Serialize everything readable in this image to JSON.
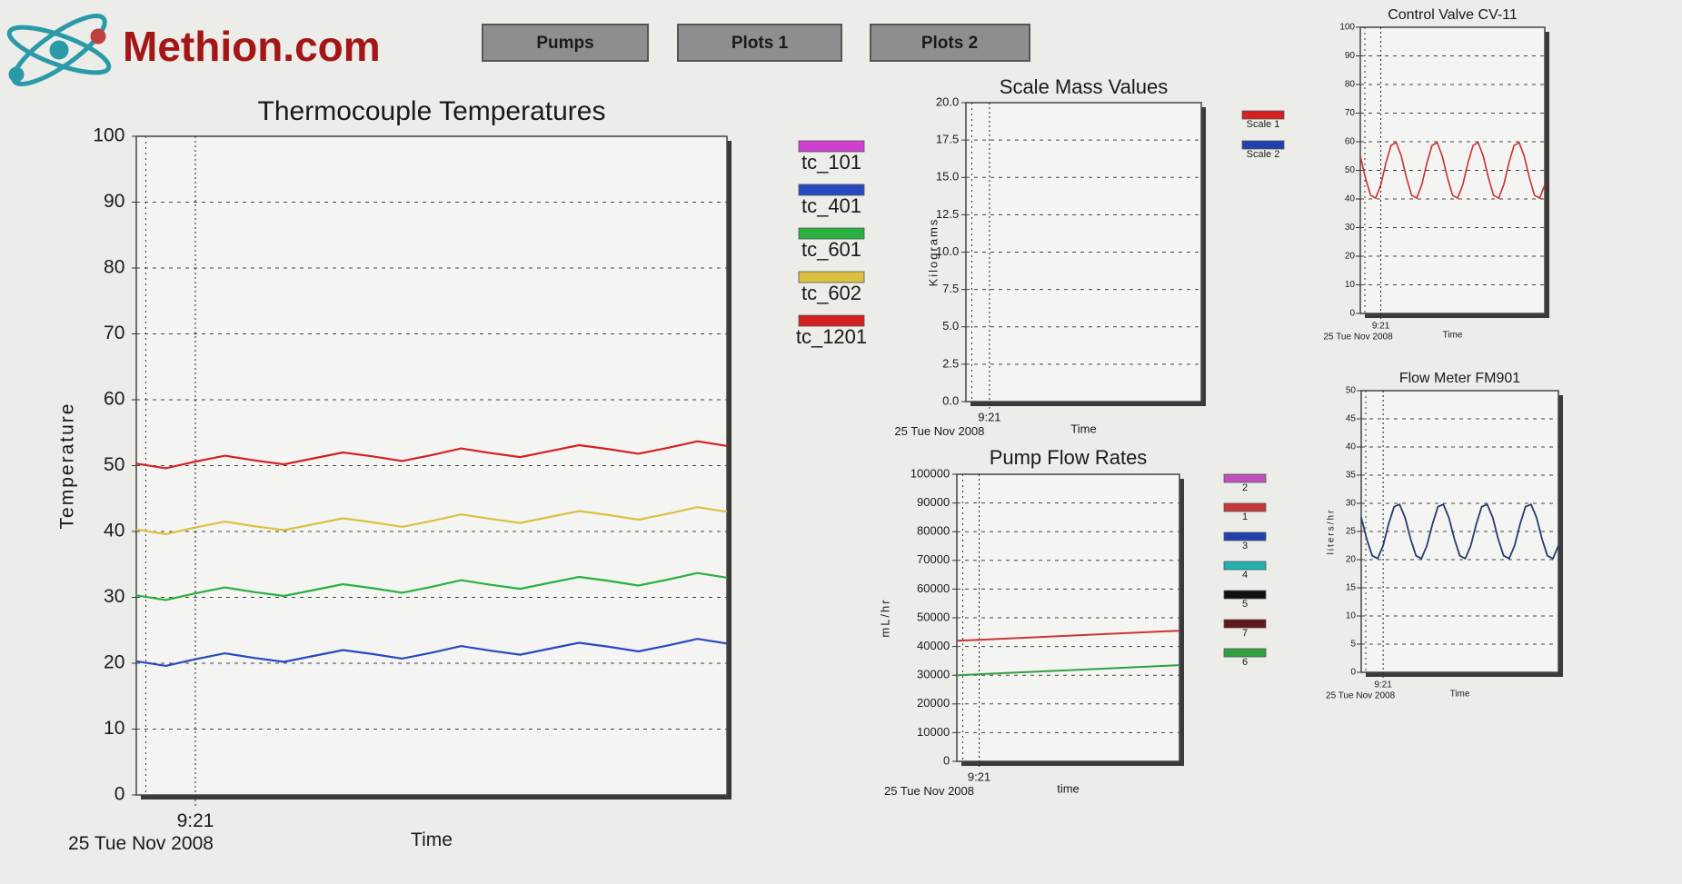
{
  "header": {
    "logo": "Methion.com",
    "buttons": [
      "Pumps",
      "Plots 1",
      "Plots 2"
    ]
  },
  "chart_data": [
    {
      "type": "line",
      "title": "Thermocouple Temperatures",
      "x_label": "Time",
      "y_label": "Temperature",
      "date_label": "25 Tue Nov 2008",
      "categories": [
        null,
        null,
        "9:21",
        null,
        null,
        null,
        null,
        null,
        null,
        null,
        null,
        null,
        null,
        null,
        null,
        null,
        null,
        null,
        null,
        null,
        null
      ],
      "ylim": [
        0,
        100
      ],
      "yticks": [
        0,
        10,
        20,
        30,
        40,
        50,
        60,
        70,
        80,
        90,
        100
      ],
      "grid": true,
      "legend": "right",
      "series": [
        {
          "name": "tc_101",
          "color": "#d040d0",
          "values": [
            null,
            null,
            null,
            null,
            null,
            null,
            null,
            null,
            null,
            null,
            null,
            null,
            null,
            null,
            null,
            null,
            null,
            null,
            null,
            null,
            null
          ]
        },
        {
          "name": "tc_401",
          "color": "#2848c0",
          "values": [
            20.3,
            19.6,
            20.6,
            21.5,
            20.8,
            20.2,
            21.1,
            22.0,
            21.4,
            20.7,
            21.6,
            22.6,
            21.9,
            21.3,
            22.2,
            23.1,
            22.5,
            21.8,
            22.7,
            23.7,
            23.0
          ]
        },
        {
          "name": "tc_601",
          "color": "#28b040",
          "values": [
            30.3,
            29.6,
            30.6,
            31.5,
            30.8,
            30.2,
            31.1,
            32.0,
            31.4,
            30.7,
            31.6,
            32.6,
            31.9,
            31.3,
            32.2,
            33.1,
            32.5,
            31.8,
            32.7,
            33.7,
            33.0
          ]
        },
        {
          "name": "tc_602",
          "color": "#dcc040",
          "values": [
            40.3,
            39.6,
            40.6,
            41.5,
            40.8,
            40.2,
            41.1,
            42.0,
            41.4,
            40.7,
            41.6,
            42.6,
            41.9,
            41.3,
            42.2,
            43.1,
            42.5,
            41.8,
            42.7,
            43.7,
            43.0
          ]
        },
        {
          "name": "tc_1201",
          "color": "#d42020",
          "values": [
            50.3,
            49.6,
            50.6,
            51.5,
            50.8,
            50.2,
            51.1,
            52.0,
            51.4,
            50.7,
            51.6,
            52.6,
            51.9,
            51.3,
            52.2,
            53.1,
            52.5,
            51.8,
            52.7,
            53.7,
            53.0
          ]
        }
      ]
    },
    {
      "type": "line",
      "title": "Scale Mass Values",
      "x_label": "Time",
      "y_label": "Kilograms",
      "date_label": "25 Tue Nov 2008",
      "categories": [
        null,
        "9:21",
        null,
        null,
        null,
        null,
        null,
        null,
        null,
        null,
        null
      ],
      "ylim": [
        0,
        20
      ],
      "yticks": [
        {
          "value": 0,
          "label": "0.0"
        },
        2.5,
        {
          "value": 5,
          "label": "5.0"
        },
        7.5,
        {
          "value": 10,
          "label": "10.0"
        },
        12.5,
        {
          "value": 15,
          "label": "15.0"
        },
        17.5,
        {
          "value": 20,
          "label": "20.0"
        }
      ],
      "grid": true,
      "legend": "right",
      "series": [
        {
          "name": "Scale 1",
          "color": "#d42020",
          "values": [
            null,
            null,
            null,
            null,
            null,
            null,
            null,
            null,
            null,
            null,
            null
          ]
        },
        {
          "name": "Scale 2",
          "color": "#2040b0",
          "values": [
            null,
            null,
            null,
            null,
            null,
            null,
            null,
            null,
            null,
            null,
            null
          ]
        }
      ]
    },
    {
      "type": "line",
      "title": "Pump Flow Rates",
      "x_label": "time",
      "y_label": "mL/hr",
      "date_label": "25 Tue Nov 2008",
      "categories": [
        null,
        "9:21",
        null,
        null,
        null,
        null,
        null,
        null,
        null,
        null,
        null
      ],
      "ylim": [
        0,
        100000
      ],
      "yticks": [
        0,
        10000,
        20000,
        30000,
        40000,
        50000,
        60000,
        70000,
        80000,
        90000,
        100000
      ],
      "grid": true,
      "legend": "right",
      "series": [
        {
          "name": "2",
          "color": "#c050c0",
          "values": [
            null,
            null,
            null,
            null,
            null,
            null,
            null,
            null,
            null,
            null,
            null
          ]
        },
        {
          "name": "1",
          "color": "#c83838",
          "values": [
            42000,
            42350,
            42700,
            43050,
            43400,
            43750,
            44100,
            44450,
            44800,
            45150,
            45500
          ]
        },
        {
          "name": "3",
          "color": "#2040b0",
          "values": [
            null,
            null,
            null,
            null,
            null,
            null,
            null,
            null,
            null,
            null,
            null
          ]
        },
        {
          "name": "4",
          "color": "#20b0b0",
          "values": [
            null,
            null,
            null,
            null,
            null,
            null,
            null,
            null,
            null,
            null,
            null
          ]
        },
        {
          "name": "5",
          "color": "#101010",
          "values": [
            null,
            null,
            null,
            null,
            null,
            null,
            null,
            null,
            null,
            null,
            null
          ]
        },
        {
          "name": "7",
          "color": "#601818",
          "values": [
            null,
            null,
            null,
            null,
            null,
            null,
            null,
            null,
            null,
            null,
            null
          ]
        },
        {
          "name": "6",
          "color": "#30a040",
          "values": [
            30000,
            30350,
            30700,
            31050,
            31400,
            31750,
            32100,
            32450,
            32800,
            33150,
            33500
          ]
        }
      ]
    },
    {
      "type": "line",
      "title": "Control Valve CV-11",
      "x_label": "Time",
      "date_label": "25 Tue Nov 2008",
      "categories": [
        null,
        null,
        null,
        null,
        "9:21",
        null,
        null,
        null,
        null,
        null,
        null,
        null,
        null,
        null,
        null,
        null,
        null,
        null,
        null,
        null,
        null,
        null,
        null,
        null,
        null,
        null,
        null,
        null,
        null,
        null,
        null,
        null,
        null,
        null,
        null,
        null,
        null
      ],
      "ylim": [
        0,
        100
      ],
      "yticks": [
        0,
        10,
        20,
        30,
        40,
        50,
        60,
        70,
        80,
        90,
        100
      ],
      "grid": true,
      "series": [
        {
          "color": "#c83030",
          "values": [
            55,
            47.4,
            41.3,
            40.3,
            45,
            52.6,
            58.7,
            59.7,
            55,
            47.4,
            41.3,
            40.3,
            45,
            52.6,
            58.7,
            59.7,
            55,
            47.4,
            41.3,
            40.3,
            45,
            52.6,
            58.7,
            59.7,
            55,
            47.4,
            41.3,
            40.3,
            45,
            52.6,
            58.7,
            59.7,
            55,
            47.4,
            41.3,
            40.3,
            45
          ]
        }
      ]
    },
    {
      "type": "line",
      "title": "Flow Meter FM901",
      "x_label": "Time",
      "y_label": "liters/hr",
      "date_label": "25 Tue Nov 2008",
      "categories": [
        null,
        null,
        null,
        null,
        "9:21",
        null,
        null,
        null,
        null,
        null,
        null,
        null,
        null,
        null,
        null,
        null,
        null,
        null,
        null,
        null,
        null,
        null,
        null,
        null,
        null,
        null,
        null,
        null,
        null,
        null,
        null,
        null,
        null,
        null,
        null,
        null,
        null
      ],
      "ylim": [
        0,
        50
      ],
      "yticks": [
        0,
        5,
        10,
        15,
        20,
        25,
        30,
        35,
        40,
        45,
        50
      ],
      "grid": true,
      "series": [
        {
          "color": "#2a3a70",
          "values": [
            27.5,
            23.7,
            20.7,
            20.2,
            22.5,
            26.3,
            29.4,
            29.8,
            27.5,
            23.7,
            20.7,
            20.2,
            22.5,
            26.3,
            29.4,
            29.8,
            27.5,
            23.7,
            20.7,
            20.2,
            22.5,
            26.3,
            29.4,
            29.8,
            27.5,
            23.7,
            20.7,
            20.2,
            22.5,
            26.3,
            29.4,
            29.8,
            27.5,
            23.7,
            20.7,
            20.2,
            22.5
          ]
        }
      ]
    }
  ]
}
